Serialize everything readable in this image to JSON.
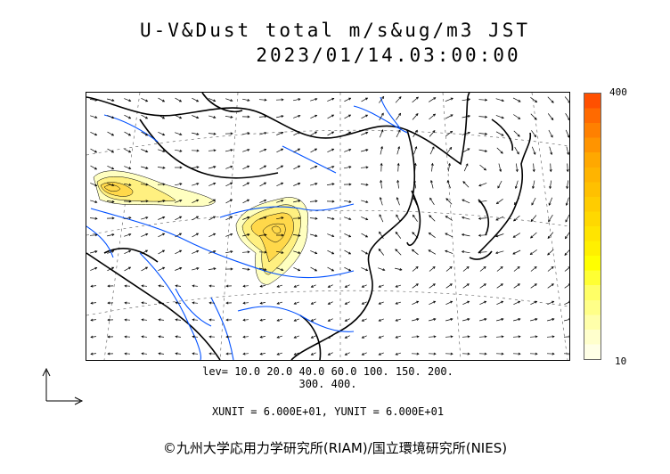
{
  "title": {
    "line1": "U-V&Dust total m/s&ug/m3 JST",
    "line2": "2023/01/14.03:00:00"
  },
  "legend": {
    "max_label": "400",
    "min_label": "10",
    "colors": [
      "#ff5000",
      "#ff6a00",
      "#ff8000",
      "#ff9400",
      "#ffa800",
      "#ffb400",
      "#ffc000",
      "#ffcc00",
      "#ffd800",
      "#ffe400",
      "#fff000",
      "#ffff00",
      "#ffff33",
      "#ffff66",
      "#ffff88",
      "#ffffaa",
      "#ffffcc",
      "#ffffe6"
    ]
  },
  "levels": {
    "line1": "lev= 10.0 20.0 40.0 60.0 100. 150. 200.",
    "line2": "300. 400."
  },
  "units": "XUNIT = 6.000E+01, YUNIT = 6.000E+01",
  "copyright": "©九州大学応用力学研究所(RIAM)/国立環境研究所(NIES)",
  "colors": {
    "coast": "#000000",
    "river": "#0050ff",
    "dust_low": "#ffffc0",
    "dust_mid": "#fff080",
    "dust_high": "#ffd84a",
    "grid": "#555555"
  }
}
